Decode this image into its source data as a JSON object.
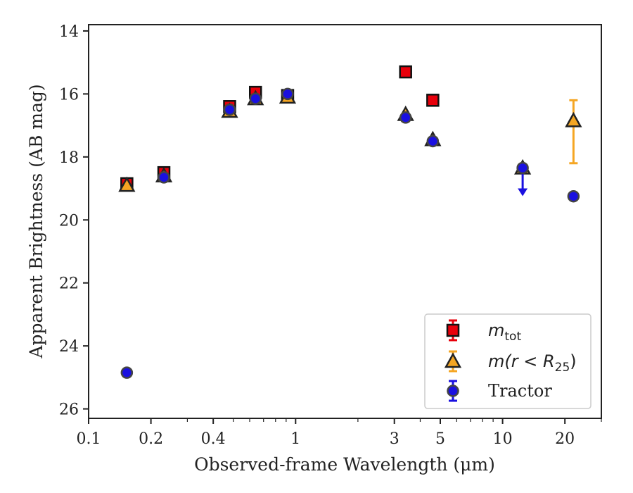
{
  "chart_data": {
    "type": "scatter",
    "xlabel": "Observed-frame Wavelength (μm)",
    "ylabel": "Apparent Brightness (AB mag)",
    "xscale": "log",
    "xlim": [
      0.1,
      30
    ],
    "ylim": [
      26.3,
      13.8
    ],
    "y_inverted": true,
    "x_ticks": [
      0.1,
      0.2,
      0.4,
      1,
      3,
      5,
      10,
      20
    ],
    "x_tick_labels": [
      "0.1",
      "0.2",
      "0.4",
      "1",
      "3",
      "5",
      "10",
      "20"
    ],
    "y_ticks": [
      14,
      16,
      18,
      20,
      22,
      24,
      26
    ],
    "y_tick_labels": [
      "14",
      "16",
      "18",
      "20",
      "22",
      "24",
      "26"
    ],
    "grid": false,
    "legend_position": "bottom-right",
    "series": [
      {
        "name": "m_tot",
        "legend_main": "m",
        "legend_sub": "tot",
        "marker": "square",
        "color": "#e8000b",
        "edge": "#111111",
        "points": [
          {
            "x": 0.153,
            "y": 18.85,
            "err": 0.05
          },
          {
            "x": 0.231,
            "y": 18.5,
            "err": 0.05
          },
          {
            "x": 0.48,
            "y": 16.4,
            "err": 0.05
          },
          {
            "x": 0.64,
            "y": 15.95,
            "err": 0.05
          },
          {
            "x": 0.915,
            "y": 16.05,
            "err": 0.05
          },
          {
            "x": 3.4,
            "y": 15.3,
            "err": 0.05
          },
          {
            "x": 4.6,
            "y": 16.2,
            "err": 0.05
          }
        ]
      },
      {
        "name": "m(r < R_25)",
        "legend_main": "m(r < R",
        "legend_sub": "25",
        "legend_tail": ")",
        "marker": "triangle",
        "color": "#f5a623",
        "edge": "#222222",
        "points": [
          {
            "x": 0.153,
            "y": 18.9,
            "err": 0.05
          },
          {
            "x": 0.231,
            "y": 18.6,
            "err": 0.05
          },
          {
            "x": 0.48,
            "y": 16.55,
            "err": 0.05
          },
          {
            "x": 0.64,
            "y": 16.15,
            "err": 0.05
          },
          {
            "x": 0.915,
            "y": 16.1,
            "err": 0.05
          },
          {
            "x": 3.4,
            "y": 16.65,
            "err": 0.05
          },
          {
            "x": 4.6,
            "y": 17.45,
            "err": 0.05
          },
          {
            "x": 12.5,
            "y": 18.35,
            "err": 0.05
          },
          {
            "x": 22.0,
            "y": 16.85,
            "err_low": 1.35,
            "err_high": 0.65
          }
        ]
      },
      {
        "name": "Tractor",
        "marker": "circle",
        "color": "#1a10e0",
        "edge": "#444444",
        "points": [
          {
            "x": 0.153,
            "y": 24.85,
            "err": 0.05
          },
          {
            "x": 0.231,
            "y": 18.65,
            "err": 0.05
          },
          {
            "x": 0.48,
            "y": 16.5,
            "err": 0.05
          },
          {
            "x": 0.64,
            "y": 16.15,
            "err": 0.05
          },
          {
            "x": 0.915,
            "y": 16.0,
            "err": 0.05
          },
          {
            "x": 3.4,
            "y": 16.75,
            "err": 0.05
          },
          {
            "x": 4.6,
            "y": 17.5,
            "err": 0.05
          },
          {
            "x": 12.5,
            "y": 18.35,
            "upper_limit": true
          },
          {
            "x": 22.0,
            "y": 19.25,
            "err": 0.05
          }
        ]
      }
    ]
  }
}
